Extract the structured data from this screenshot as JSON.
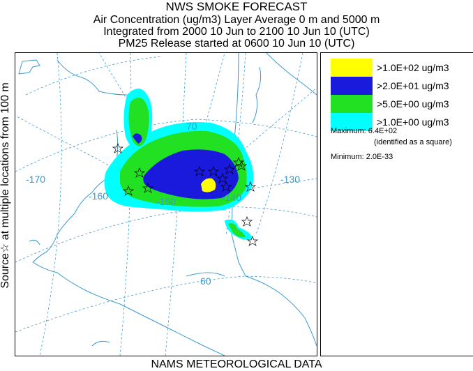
{
  "title": {
    "line1": "NWS SMOKE FORECAST",
    "line2": "Air Concentration (ug/m3) Layer Average    0 m and  5000 m",
    "line3": "Integrated from 2000 10 Jun to 2100 10 Jun 10 (UTC)",
    "line4": "PM25 Release started at 0600 10 Jun 10 (UTC)"
  },
  "side_label": "Source☆   at multiple locations     from   100 m",
  "bottom_label": "NAMS METEOROLOGICAL DATA",
  "map": {
    "grid_labels": {
      "lon_170": "-170",
      "lon_160": "-160",
      "lon_150": "-150",
      "lon_140": "-140",
      "lon_130": "-130",
      "lat_70": "70",
      "lat_60": "60"
    },
    "colors": {
      "coast": "#3a9ad0",
      "grid": "#3a9ad0",
      "level1": "#ffff00",
      "level2": "#1a1adc",
      "level3": "#22e022",
      "level4": "#00ffff"
    }
  },
  "legend": {
    "items": [
      {
        "label": ">1.0E+02 ug/m3",
        "color": "#ffff00"
      },
      {
        "label": ">2.0E+01 ug/m3",
        "color": "#1a1adc"
      },
      {
        "label": ">5.0E+00 ug/m3",
        "color": "#22e022"
      },
      {
        "label": ">1.0E+00 ug/m3",
        "color": "#00ffff"
      }
    ],
    "maximum": "Maximum: 6.4E+02",
    "maximum_note": "(identified as a square)",
    "minimum": "Minimum: 2.0E-33"
  }
}
